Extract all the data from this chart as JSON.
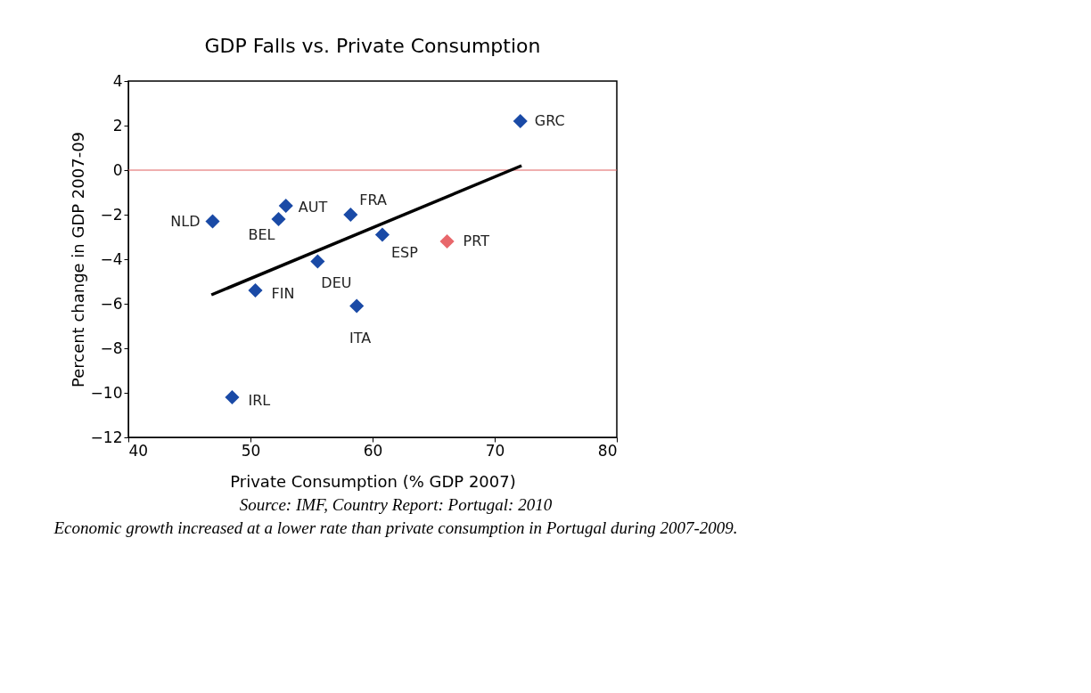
{
  "chart_data": {
    "type": "scatter",
    "title": "GDP Falls vs. Private Consumption",
    "xlabel": "Private Consumption (% GDP 2007)",
    "ylabel": "Percent change in GDP 2007-09",
    "xlim": [
      40,
      80
    ],
    "xticks": [
      40,
      50,
      60,
      70,
      80
    ],
    "ylim": [
      -12,
      4
    ],
    "yticks": [
      -12,
      -10,
      -8,
      -6,
      -4,
      -2,
      0,
      2,
      4
    ],
    "grid": false,
    "legend": false,
    "series": [
      {
        "marker": "diamond",
        "x": [
          72.1,
          46.9,
          52.3,
          52.9,
          58.2,
          60.8,
          66.1,
          55.5,
          50.4,
          58.7,
          48.5
        ],
        "values": [
          2.2,
          -2.3,
          -2.2,
          -1.6,
          -2.0,
          -2.9,
          -3.2,
          -4.1,
          -5.4,
          -6.1,
          -10.2
        ],
        "colors": [
          "#1a4aa6",
          "#1a4aa6",
          "#1a4aa6",
          "#1a4aa6",
          "#1a4aa6",
          "#1a4aa6",
          "#e8676b",
          "#1a4aa6",
          "#1a4aa6",
          "#1a4aa6",
          "#1a4aa6"
        ]
      },
      {
        "type": "line",
        "marker": "none",
        "x": [
          46.8,
          72.2
        ],
        "values": [
          -5.6,
          0.2
        ],
        "color": "#000000"
      }
    ],
    "ref_lines": [
      {
        "axis": "y",
        "value": 0,
        "color": "#e06060"
      }
    ],
    "annotations": [
      {
        "text": "GRC",
        "x": 72.1,
        "y": 2.2
      },
      {
        "text": "NLD",
        "x": 46.9,
        "y": -2.3
      },
      {
        "text": "BEL",
        "x": 52.3,
        "y": -2.2
      },
      {
        "text": "AUT",
        "x": 52.9,
        "y": -1.6
      },
      {
        "text": "FRA",
        "x": 58.2,
        "y": -2.0
      },
      {
        "text": "ESP",
        "x": 60.8,
        "y": -2.9
      },
      {
        "text": "PRT",
        "x": 66.1,
        "y": -3.2
      },
      {
        "text": "DEU",
        "x": 55.5,
        "y": -4.1
      },
      {
        "text": "FIN",
        "x": 50.4,
        "y": -5.4
      },
      {
        "text": "ITA",
        "x": 58.7,
        "y": -6.1
      },
      {
        "text": "IRL",
        "x": 48.5,
        "y": -10.2
      },
      "Source: IMF, Country Report: Portugal: 2010",
      "Economic growth increased at a lower rate than private consumption in Portugal during 2007-2009."
    ]
  }
}
